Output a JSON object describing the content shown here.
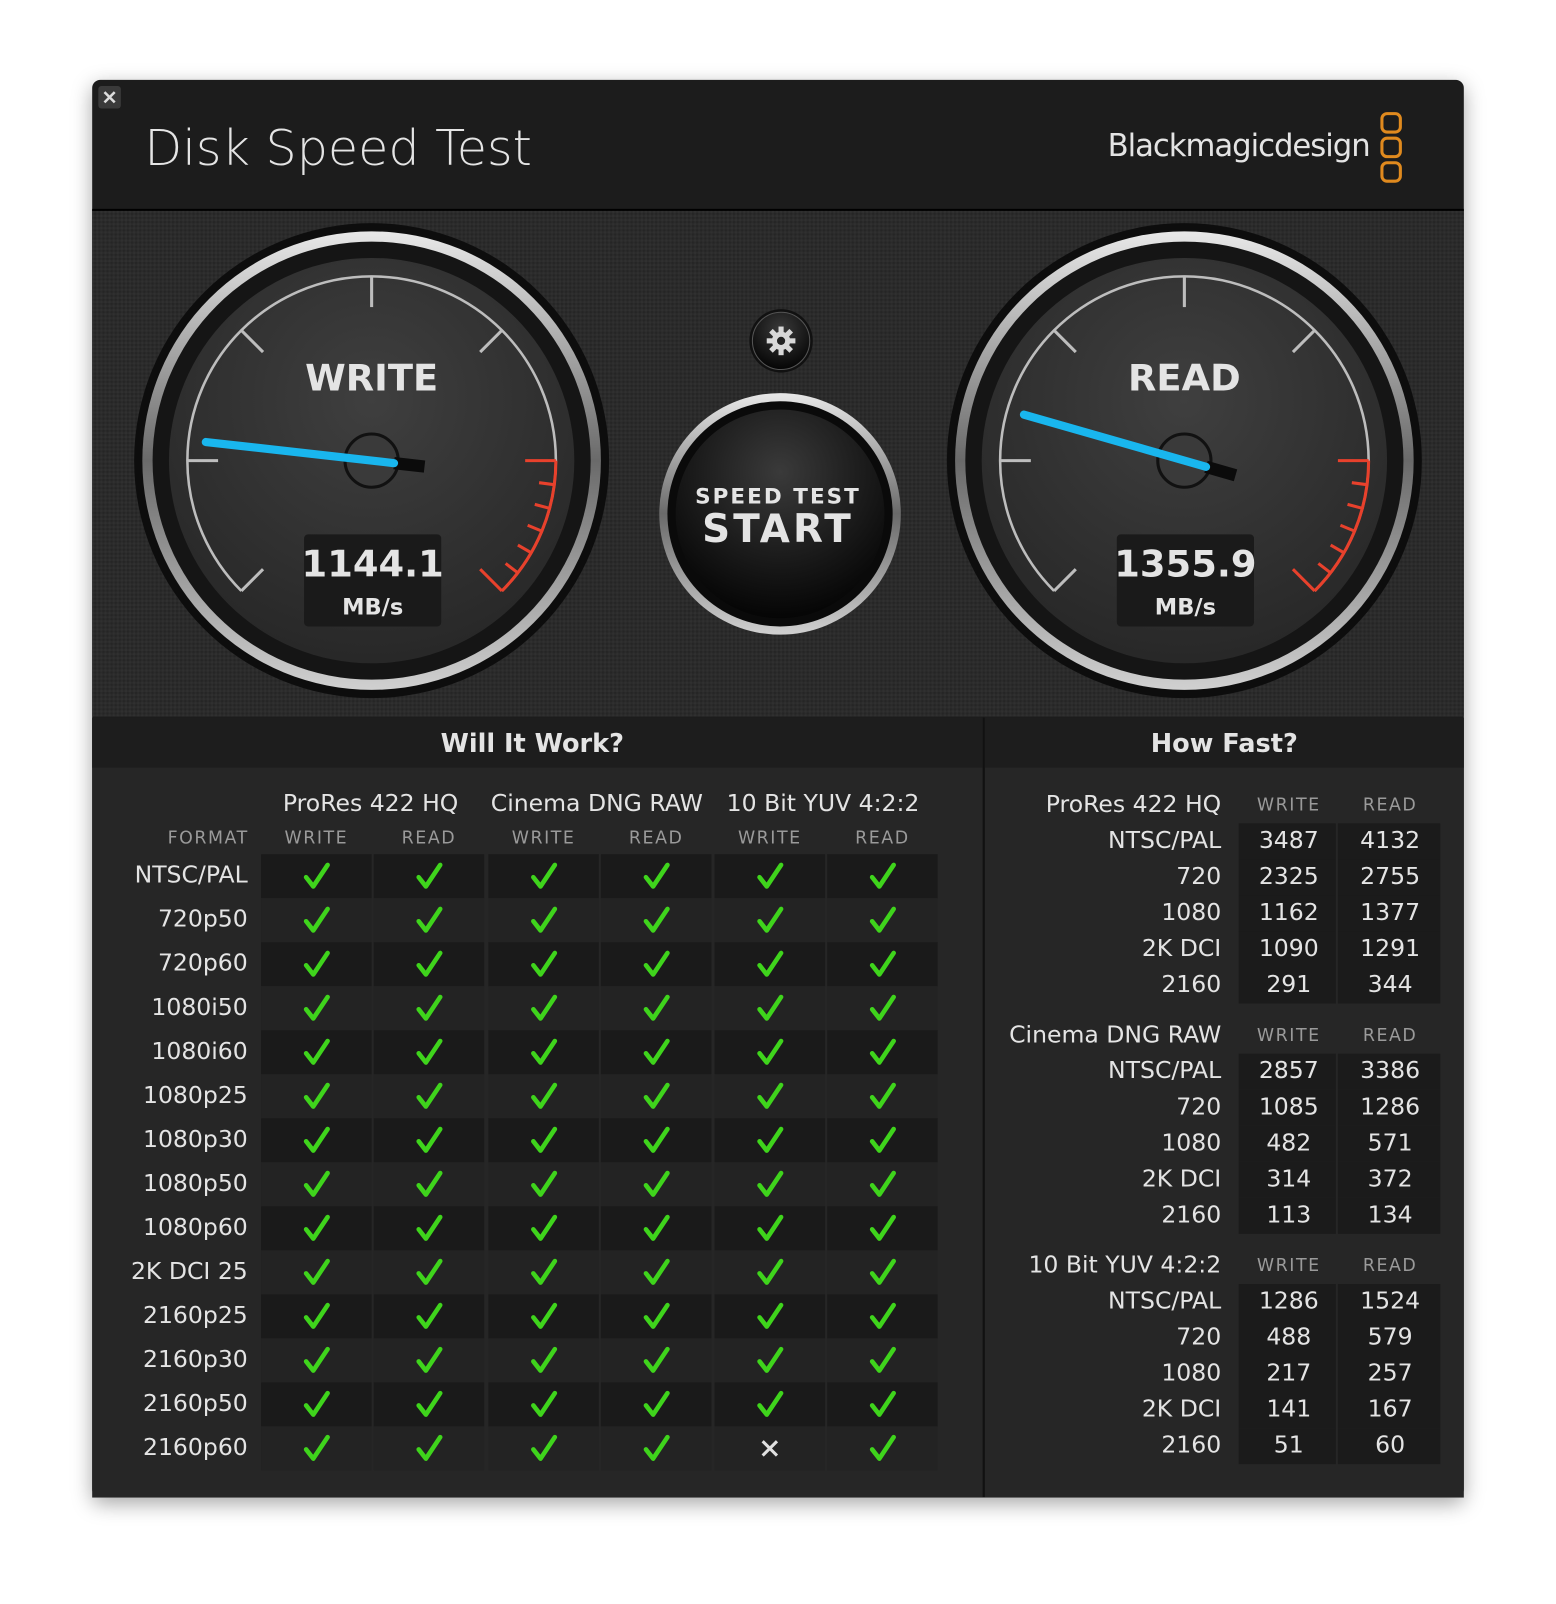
{
  "header": {
    "title": "Disk Speed Test",
    "brand": "Blackmagicdesign"
  },
  "gauges": [
    {
      "label": "WRITE",
      "value": 1144.1,
      "unit": "MB/s"
    },
    {
      "label": "READ",
      "value": 1355.9,
      "unit": "MB/s"
    }
  ],
  "start_button": {
    "line1": "SPEED TEST",
    "line2": "START"
  },
  "will_it_work": {
    "title": "Will It Work?",
    "format_header": "FORMAT",
    "codecs": [
      "ProRes 422 HQ",
      "Cinema DNG RAW",
      "10 Bit YUV 4:2:2"
    ],
    "column_headers": [
      "WRITE",
      "READ",
      "WRITE",
      "READ",
      "WRITE",
      "READ"
    ],
    "rows": [
      {
        "format": "NTSC/PAL",
        "supported": [
          true,
          true,
          true,
          true,
          true,
          true
        ]
      },
      {
        "format": "720p50",
        "supported": [
          true,
          true,
          true,
          true,
          true,
          true
        ]
      },
      {
        "format": "720p60",
        "supported": [
          true,
          true,
          true,
          true,
          true,
          true
        ]
      },
      {
        "format": "1080i50",
        "supported": [
          true,
          true,
          true,
          true,
          true,
          true
        ]
      },
      {
        "format": "1080i60",
        "supported": [
          true,
          true,
          true,
          true,
          true,
          true
        ]
      },
      {
        "format": "1080p25",
        "supported": [
          true,
          true,
          true,
          true,
          true,
          true
        ]
      },
      {
        "format": "1080p30",
        "supported": [
          true,
          true,
          true,
          true,
          true,
          true
        ]
      },
      {
        "format": "1080p50",
        "supported": [
          true,
          true,
          true,
          true,
          true,
          true
        ]
      },
      {
        "format": "1080p60",
        "supported": [
          true,
          true,
          true,
          true,
          true,
          true
        ]
      },
      {
        "format": "2K DCI 25",
        "supported": [
          true,
          true,
          true,
          true,
          true,
          true
        ]
      },
      {
        "format": "2160p25",
        "supported": [
          true,
          true,
          true,
          true,
          true,
          true
        ]
      },
      {
        "format": "2160p30",
        "supported": [
          true,
          true,
          true,
          true,
          true,
          true
        ]
      },
      {
        "format": "2160p50",
        "supported": [
          true,
          true,
          true,
          true,
          true,
          true
        ]
      },
      {
        "format": "2160p60",
        "supported": [
          true,
          true,
          true,
          true,
          false,
          true
        ]
      }
    ]
  },
  "how_fast": {
    "title": "How Fast?",
    "groups": [
      {
        "codec": "ProRes 422 HQ",
        "write_header": "WRITE",
        "read_header": "READ",
        "rows": [
          {
            "format": "NTSC/PAL",
            "write": 3487,
            "read": 4132
          },
          {
            "format": "720",
            "write": 2325,
            "read": 2755
          },
          {
            "format": "1080",
            "write": 1162,
            "read": 1377
          },
          {
            "format": "2K DCI",
            "write": 1090,
            "read": 1291
          },
          {
            "format": "2160",
            "write": 291,
            "read": 344
          }
        ]
      },
      {
        "codec": "Cinema DNG RAW",
        "write_header": "WRITE",
        "read_header": "READ",
        "rows": [
          {
            "format": "NTSC/PAL",
            "write": 2857,
            "read": 3386
          },
          {
            "format": "720",
            "write": 1085,
            "read": 1286
          },
          {
            "format": "1080",
            "write": 482,
            "read": 571
          },
          {
            "format": "2K DCI",
            "write": 314,
            "read": 372
          },
          {
            "format": "2160",
            "write": 113,
            "read": 134
          }
        ]
      },
      {
        "codec": "10 Bit YUV 4:2:2",
        "write_header": "WRITE",
        "read_header": "READ",
        "rows": [
          {
            "format": "NTSC/PAL",
            "write": 1286,
            "read": 1524
          },
          {
            "format": "720",
            "write": 488,
            "read": 579
          },
          {
            "format": "1080",
            "write": 217,
            "read": 257
          },
          {
            "format": "2K DCI",
            "write": 141,
            "read": 167
          },
          {
            "format": "2160",
            "write": 51,
            "read": 60
          }
        ]
      }
    ]
  }
}
